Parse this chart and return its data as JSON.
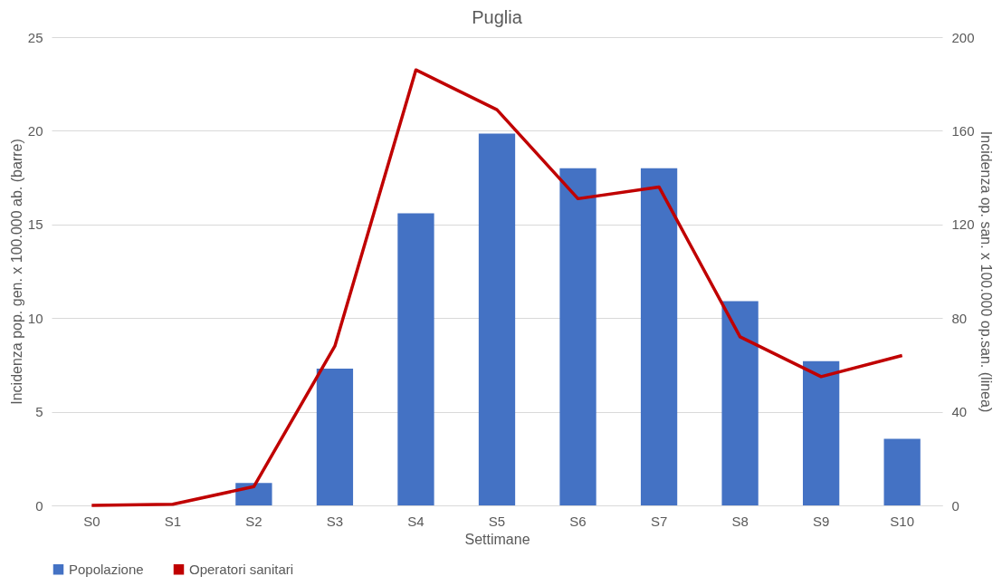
{
  "chart_data": {
    "type": "bar",
    "title": "Puglia",
    "xlabel": "Settimane",
    "ylabel": "Incidenza pop. gen. x 100.000 ab. (barre)",
    "y2label": "Incidenza op. san. x 100.000 op.san. (linea)",
    "categories": [
      "S0",
      "S1",
      "S2",
      "S3",
      "S4",
      "S5",
      "S6",
      "S7",
      "S8",
      "S9",
      "S10"
    ],
    "series": [
      {
        "name": "Popolazione",
        "color": "#4472c4",
        "values": [
          0,
          null,
          1.2,
          7.3,
          15.6,
          19.85,
          18.0,
          18.0,
          10.9,
          7.7,
          3.55
        ]
      },
      {
        "name": "Operatori sanitari",
        "type": "line",
        "axis": "y2",
        "color": "#c00000",
        "values": [
          0,
          0.5,
          8,
          68,
          186,
          169,
          131,
          136,
          72,
          55,
          64
        ]
      }
    ],
    "ylim": [
      0,
      25
    ],
    "yticks": [
      0,
      5,
      10,
      15,
      20,
      25
    ],
    "y2lim": [
      0,
      200
    ],
    "y2ticks": [
      0,
      40,
      80,
      120,
      160,
      200
    ],
    "grid": "y",
    "legend": "bottom",
    "marker": "none",
    "line_style": "solid"
  }
}
